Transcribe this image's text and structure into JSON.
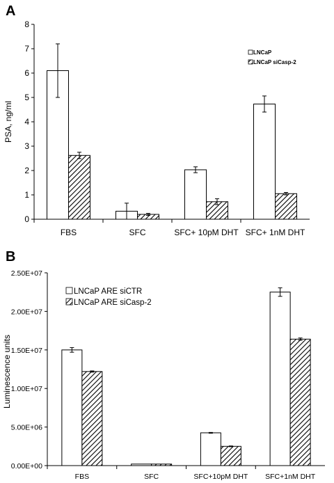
{
  "panels": [
    {
      "label": "A",
      "ylabel": "PSA, ng/ml",
      "ytick_labels": [
        "0",
        "1",
        "2",
        "3",
        "4",
        "5",
        "6",
        "7",
        "8"
      ],
      "legend": [
        "LNCaP",
        "LNCaP siCasp-2"
      ]
    },
    {
      "label": "B",
      "ylabel": "Luminescence units",
      "ytick_labels": [
        "0.00E+00",
        "5.00E+06",
        "1.00E+07",
        "1.50E+07",
        "2.00E+07",
        "2.50E+07"
      ],
      "legend": [
        "LNCaP ARE siCTR",
        "LNCaP ARE siCasp-2"
      ]
    }
  ],
  "chart_data": [
    {
      "type": "bar",
      "title": "",
      "xlabel": "",
      "ylabel": "PSA, ng/ml",
      "categories": [
        "FBS",
        "SFC",
        "SFC+ 10pM DHT",
        "SFC+ 1nM DHT"
      ],
      "ylim": [
        0,
        8
      ],
      "series": [
        {
          "name": "LNCaP",
          "values": [
            6.1,
            0.33,
            2.03,
            4.73
          ],
          "errors": [
            1.1,
            0.33,
            0.12,
            0.33
          ],
          "fill": "white",
          "color": "#000000"
        },
        {
          "name": "LNCaP siCasp-2",
          "values": [
            2.62,
            0.2,
            0.72,
            1.05
          ],
          "errors": [
            0.13,
            0.04,
            0.12,
            0.05
          ],
          "fill": "hatched",
          "color": "#000000"
        }
      ],
      "grid": false,
      "legend_position": "top-right"
    },
    {
      "type": "bar",
      "title": "",
      "xlabel": "",
      "ylabel": "Luminescence units",
      "categories": [
        "FBS",
        "SFC",
        "SFC+10pM DHT",
        "SFC+1nM DHT"
      ],
      "ylim": [
        0,
        25000000
      ],
      "series": [
        {
          "name": "LNCaP ARE siCTR",
          "values": [
            15000000,
            200000,
            4250000,
            22500000
          ],
          "errors": [
            300000,
            0,
            50000,
            550000
          ],
          "fill": "white",
          "color": "#000000"
        },
        {
          "name": "LNCaP ARE siCasp-2",
          "values": [
            12200000,
            200000,
            2500000,
            16400000
          ],
          "errors": [
            80000,
            0,
            50000,
            150000
          ],
          "fill": "hatched",
          "color": "#000000"
        }
      ],
      "grid": false,
      "legend_position": "top-left"
    }
  ]
}
